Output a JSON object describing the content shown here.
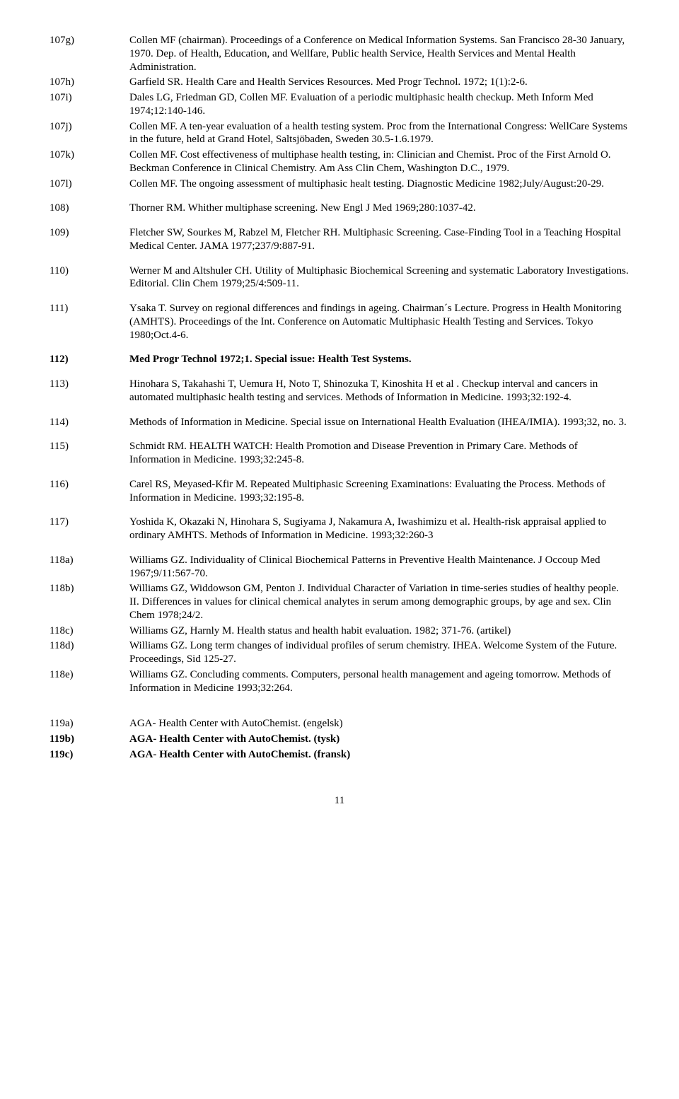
{
  "entries": [
    {
      "id": "107g)",
      "text": "Collen MF (chairman). Proceedings of a Conference on Medical Information Systems. San Francisco 28-30 January, 1970. Dep. of Health, Education, and Wellfare, Public health Service, Health Services and Mental Health Administration."
    },
    {
      "id": "107h)",
      "text": "Garfield SR. Health Care and Health Services Resources. Med Progr Technol. 1972; 1(1):2-6."
    },
    {
      "id": "107i)",
      "text": "Dales LG, Friedman GD, Collen MF. Evaluation of a periodic multiphasic health checkup. Meth Inform Med 1974;12:140-146."
    },
    {
      "id": "107j)",
      "text": "Collen MF. A ten-year evaluation of a health testing system. Proc from the International Congress: WellCare Systems in the future, held at Grand Hotel, Saltsjöbaden, Sweden 30.5-1.6.1979."
    },
    {
      "id": "107k)",
      "text": "Collen MF. Cost effectiveness of multiphase health testing, in: Clinician and Chemist. Proc of the First Arnold O. Beckman Conference in Clinical Chemistry. Am Ass Clin Chem, Washington D.C., 1979."
    },
    {
      "id": "107l)",
      "text": "Collen MF. The ongoing assessment  of multiphasic healt testing. Diagnostic Medicine 1982;July/August:20-29."
    },
    {
      "id": "108)",
      "text": "Thorner RM. Whither multiphase screening. New Engl J Med 1969;280:1037-42."
    },
    {
      "id": "109)",
      "text": "Fletcher SW, Sourkes M, Rabzel M, Fletcher RH. Multiphasic Screening. Case-Finding Tool in a Teaching Hospital Medical Center. JAMA 1977;237/9:887-91."
    },
    {
      "id": "110)",
      "text": "Werner M and Altshuler CH. Utility of Multiphasic Biochemical Screening and systematic Laboratory Investigations. Editorial. Clin Chem 1979;25/4:509-11."
    },
    {
      "id": "111)",
      "text": "Ysaka T. Survey on regional differences and findings in ageing. Chairman´s Lecture. Progress in Health Monitoring (AMHTS). Proceedings of the Int. Conference on Automatic Multiphasic Health Testing and Services. Tokyo 1980;Oct.4-6."
    },
    {
      "id": "112)",
      "text": "Med Progr Technol 1972;1. Special issue: Health Test Systems.",
      "bold": true
    },
    {
      "id": "113)",
      "text": "Hinohara S, Takahashi T, Uemura H, Noto T, Shinozuka T, Kinoshita H et al . Checkup interval and cancers in automated multiphasic health testing and services. Methods of Information in Medicine. 1993;32:192-4."
    },
    {
      "id": "114)",
      "text": "Methods of Information in Medicine. Special issue on International Health Evaluation (IHEA/IMIA). 1993;32, no. 3."
    },
    {
      "id": "115)",
      "text": "Schmidt RM. HEALTH WATCH: Health Promotion and Disease Prevention in Primary Care. Methods of Information in Medicine. 1993;32:245-8."
    },
    {
      "id": "116)",
      "text": "Carel RS, Meyased-Kfir M. Repeated Multiphasic Screening Examinations: Evaluating the Process. Methods of Information in Medicine. 1993;32:195-8."
    },
    {
      "id": "117)",
      "text": "Yoshida K, Okazaki N, Hinohara S, Sugiyama J, Nakamura A, Iwashimizu et al. Health-risk appraisal applied to ordinary AMHTS. Methods of Information in Medicine. 1993;32:260-3"
    },
    {
      "id": "118a)",
      "text": "Williams GZ. Individuality of Clinical Biochemical  Patterns in Preventive Health Maintenance. J Occoup Med 1967;9/11:567-70."
    },
    {
      "id": "118b)",
      "text": "Williams GZ, Widdowson GM, Penton J. Individual Character of Variation in time-series studies of healthy people. II. Differences in values for clinical chemical analytes in serum among demographic groups, by age and sex. Clin Chem 1978;24/2."
    },
    {
      "id": "118c)",
      "text": "Williams GZ, Harnly M. Health status and health habit evaluation. 1982; 371-76. (artikel)"
    },
    {
      "id": "118d)",
      "text": "Williams GZ. Long term changes of individual profiles of serum chemistry. IHEA. Welcome System of the Future. Proceedings, Sid 125-27."
    },
    {
      "id": "118e)",
      "text": "Williams GZ. Concluding comments. Computers, personal health management and ageing tomorrow. Methods of Information in Medicine 1993;32:264."
    },
    {
      "id": "119a)",
      "text": "AGA- Health Center with AutoChemist. (engelsk)"
    },
    {
      "id": "119b)",
      "text": "AGA- Health Center with AutoChemist. (tysk)",
      "bold": true
    },
    {
      "id": "119c)",
      "text": "AGA- Health Center with AutoChemist. (fransk)",
      "bold": true
    }
  ],
  "groups": [
    [
      "107g)",
      "107h)",
      "107i)",
      "107j)",
      "107k)",
      "107l)"
    ],
    [
      "108)"
    ],
    [
      "109)"
    ],
    [
      "110)"
    ],
    [
      "111)"
    ],
    [
      "112)"
    ],
    [
      "113)"
    ],
    [
      "114)"
    ],
    [
      "115)"
    ],
    [
      "116)"
    ],
    [
      "117)"
    ],
    [
      "118a)",
      "118b)",
      "118c)",
      "118d)",
      "118e)"
    ],
    [
      "119a)",
      "119b)",
      "119c)"
    ]
  ],
  "page_number": "11"
}
